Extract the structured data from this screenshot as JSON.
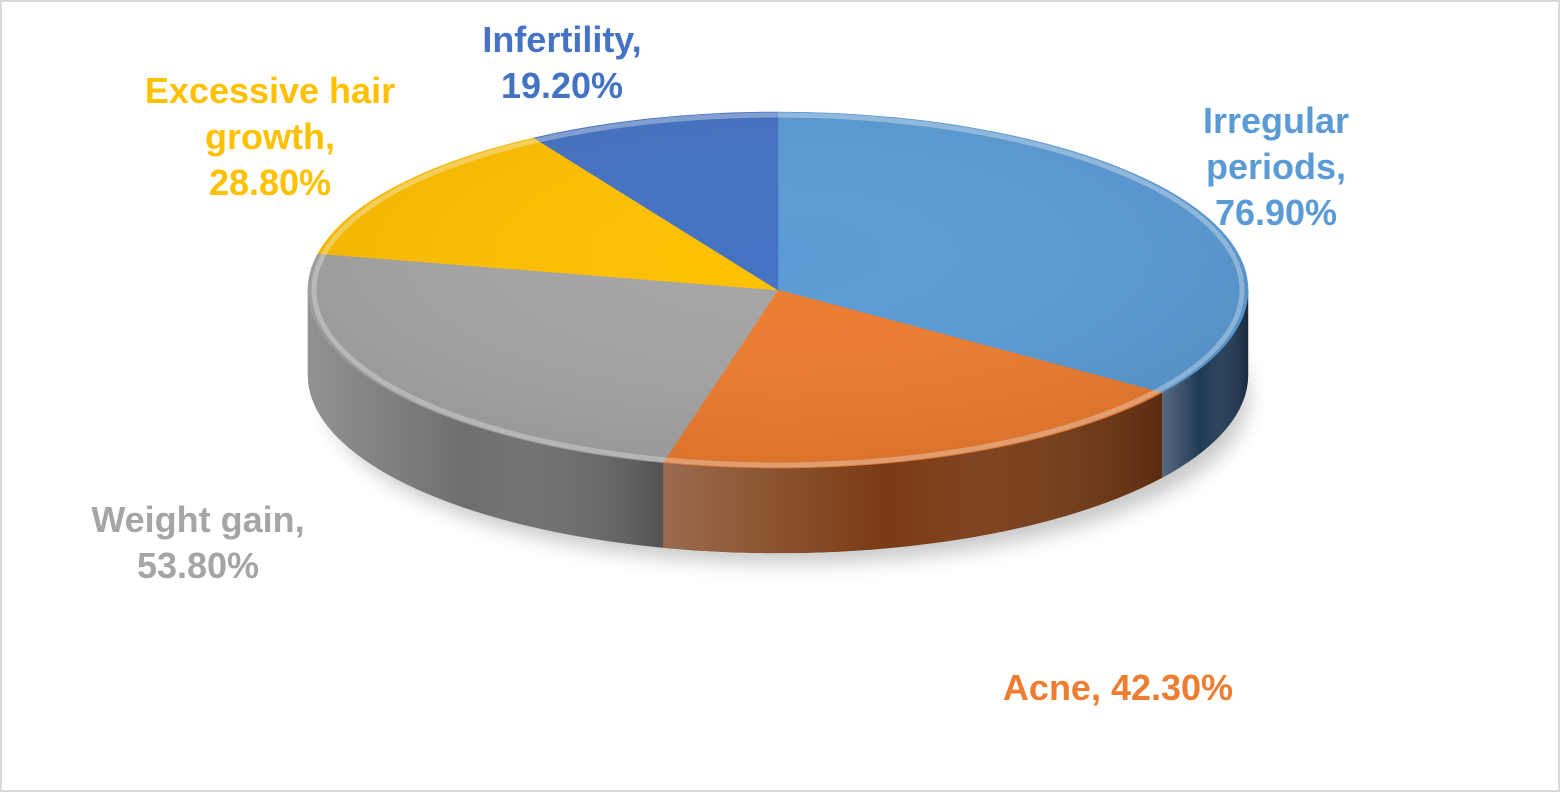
{
  "chart_data": {
    "type": "pie",
    "style": "3d",
    "slices": [
      {
        "label": "Irregular periods",
        "value": 76.9,
        "value_label": "76.90%",
        "color": "#5B9BD5",
        "side_color": "#203A55"
      },
      {
        "label": "Acne",
        "value": 42.3,
        "value_label": "42.30%",
        "color": "#ED7D31",
        "side_color": "#7A3A13"
      },
      {
        "label": "Weight gain",
        "value": 53.8,
        "value_label": "53.80%",
        "color": "#A5A5A5",
        "side_color": "#6E6E6E"
      },
      {
        "label": "Excessive hair growth",
        "value": 28.8,
        "value_label": "28.80%",
        "color": "#FFC000",
        "side_color": "#8A6800"
      },
      {
        "label": "Infertility",
        "value": 19.2,
        "value_label": "19.20%",
        "color": "#4472C4",
        "side_color": "#233B66"
      }
    ],
    "data_labels": [
      {
        "lines": [
          "Irregular",
          "periods,",
          "76.90%"
        ],
        "color": "#5B9BD5"
      },
      {
        "lines": [
          "Acne, 42.30%"
        ],
        "color": "#ED7D31"
      },
      {
        "lines": [
          "Weight gain,",
          "53.80%"
        ],
        "color": "#A5A5A5"
      },
      {
        "lines": [
          "Excessive hair",
          "growth,",
          "28.80%"
        ],
        "color": "#FFC000"
      },
      {
        "lines": [
          "Infertility,",
          "19.20%"
        ],
        "color": "#4472C4"
      }
    ],
    "legend": "none"
  }
}
